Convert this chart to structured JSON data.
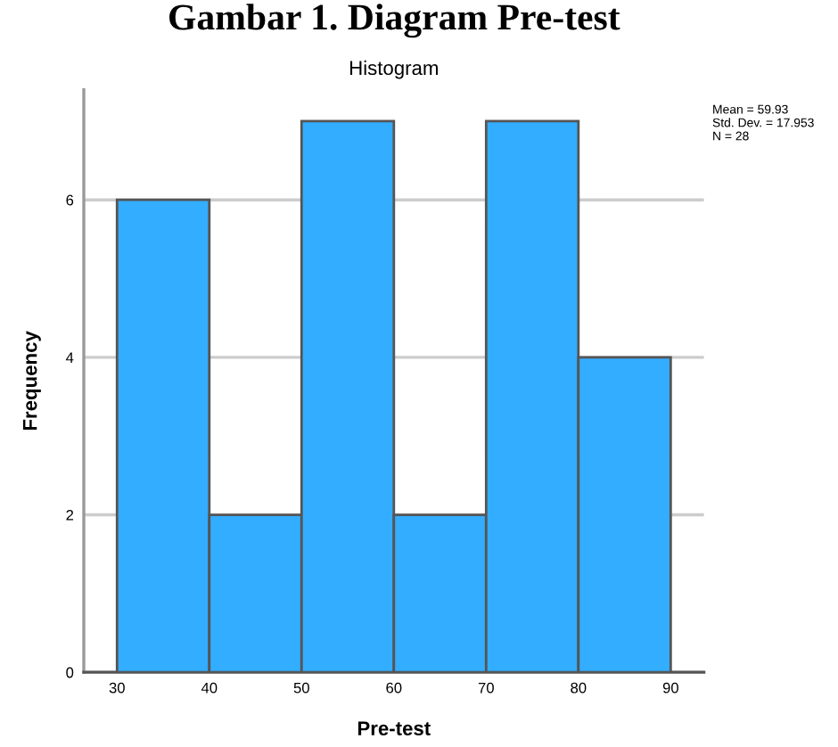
{
  "chart_data": {
    "type": "histogram",
    "title": "Gambar 1. Diagram Pre-test",
    "subtitle": "Histogram",
    "xlabel": "Pre-test",
    "ylabel": "Frequency",
    "bins": [
      30,
      40,
      50,
      60,
      70,
      80,
      90
    ],
    "values": [
      6,
      2,
      7,
      2,
      7,
      4
    ],
    "color": "#33adff",
    "xlim": [
      26.4,
      93.6
    ],
    "xticks": [
      30,
      40,
      50,
      60,
      70,
      80,
      90
    ],
    "ylim": [
      0,
      7.4
    ],
    "yticks": [
      0,
      2,
      4,
      6
    ],
    "grid": "y",
    "legend": false,
    "annotations": [
      "Mean = 59.93\nStd. Dev. = 17.953\nN = 28"
    ]
  }
}
